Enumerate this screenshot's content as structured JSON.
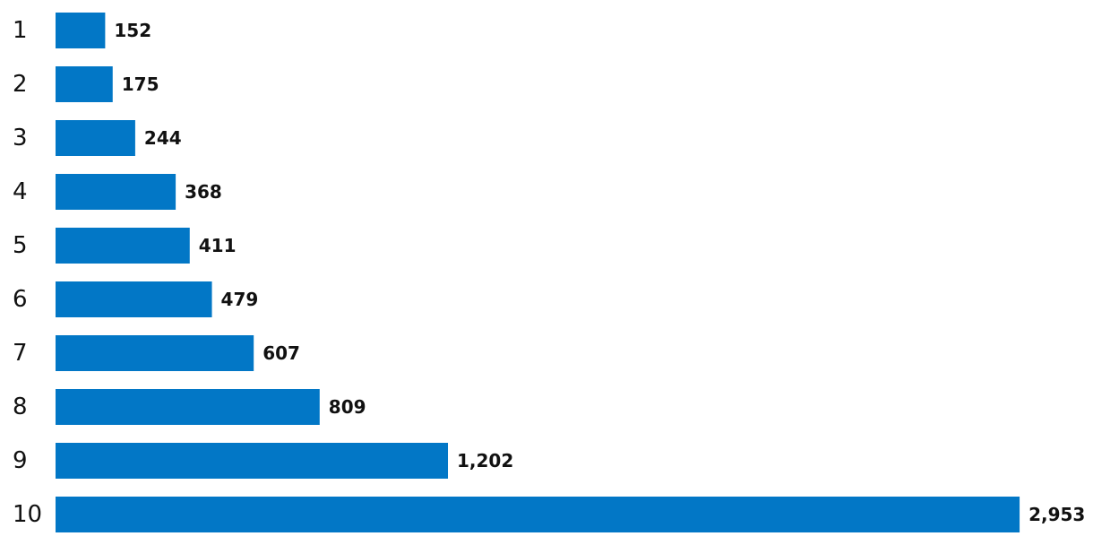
{
  "chart_data": {
    "type": "bar",
    "orientation": "horizontal",
    "categories": [
      "1",
      "2",
      "3",
      "4",
      "5",
      "6",
      "7",
      "8",
      "9",
      "10"
    ],
    "values": [
      152,
      175,
      244,
      368,
      411,
      479,
      607,
      809,
      1202,
      2953
    ],
    "value_labels": [
      "152",
      "175",
      "244",
      "368",
      "411",
      "479",
      "607",
      "809",
      "1,202",
      "2,953"
    ],
    "bar_color": "#0277c6",
    "grid": false,
    "legend": "none"
  }
}
